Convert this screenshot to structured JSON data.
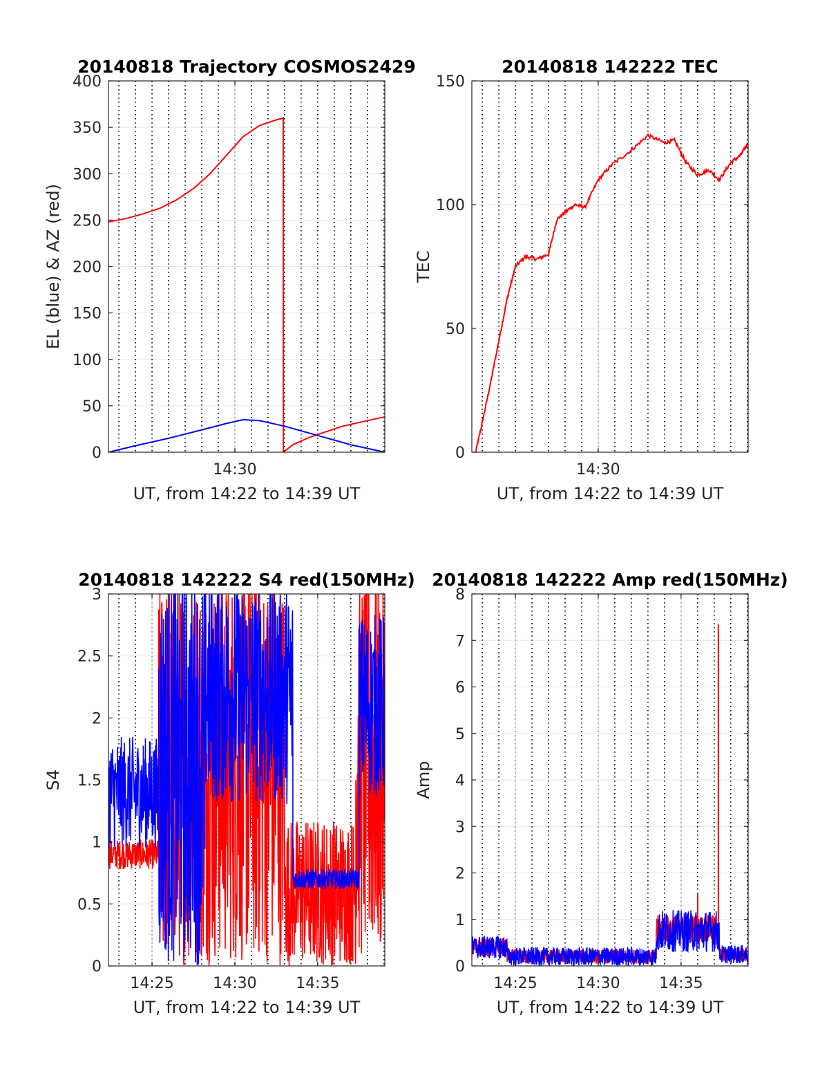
{
  "figure": {
    "background": "#ffffff",
    "colors": {
      "el": "#0000ff",
      "az": "#ff0000",
      "tec": "#ff0000",
      "s4_red": "#ff0000",
      "s4_blue": "#0000ff",
      "amp_red": "#ff0000",
      "amp_blue": "#0000ff"
    }
  },
  "chart_data": [
    {
      "id": "trajectory",
      "type": "line",
      "title": "20140818 Trajectory COSMOS2429",
      "xlabel": "UT, from 14:22 to 14:39 UT",
      "ylabel": "EL (blue) & AZ (red)",
      "xlim": [
        22.37,
        39.05
      ],
      "ylim": [
        0,
        400
      ],
      "yticks": [
        0,
        50,
        100,
        150,
        200,
        250,
        300,
        350,
        400
      ],
      "xticks": [
        {
          "v": 30,
          "label": "14:30"
        }
      ],
      "grid": true,
      "series": [
        {
          "key": "az",
          "color": "#ff0000",
          "x": [
            22.37,
            23.5,
            24.5,
            25.5,
            26.5,
            27.5,
            28.5,
            29.5,
            30.5,
            31.5,
            32.5,
            32.92,
            32.93,
            33.5,
            34.5,
            35.5,
            36.5,
            37.5,
            38.5,
            39.05
          ],
          "y": [
            248,
            252,
            257,
            263,
            272,
            284,
            300,
            320,
            340,
            352,
            358,
            360,
            0,
            8,
            16,
            22,
            28,
            32,
            36,
            38
          ]
        },
        {
          "key": "el",
          "color": "#0000ff",
          "x": [
            22.37,
            24,
            26,
            28,
            29.5,
            30.5,
            31.5,
            33,
            35,
            37,
            39.05
          ],
          "y": [
            0,
            7,
            15,
            24,
            31,
            35,
            34,
            28,
            18,
            8,
            0
          ]
        }
      ]
    },
    {
      "id": "tec",
      "type": "line",
      "title": "20140818 142222 TEC",
      "xlabel": "UT, from 14:22 to 14:39 UT",
      "ylabel": "TEC",
      "xlim": [
        22.37,
        39.05
      ],
      "ylim": [
        0,
        150
      ],
      "yticks": [
        0,
        50,
        100,
        150
      ],
      "xticks": [
        {
          "v": 30,
          "label": "14:30"
        }
      ],
      "grid": true,
      "series": [
        {
          "key": "tec",
          "color": "#ff0000",
          "x": [
            22.6,
            23.0,
            23.5,
            24.0,
            24.5,
            25.0,
            25.6,
            26.3,
            27.0,
            27.5,
            28.0,
            28.6,
            29.2,
            30.0,
            30.8,
            32.0,
            33.0,
            34.0,
            34.6,
            35.3,
            36.0,
            36.7,
            37.3,
            38.0,
            38.6,
            39.05
          ],
          "y": [
            0,
            12,
            28,
            45,
            62,
            75,
            79,
            78,
            80,
            94,
            97,
            100,
            99,
            110,
            116,
            122,
            128,
            125,
            126,
            117,
            112,
            114,
            110,
            117,
            120,
            125
          ]
        }
      ]
    },
    {
      "id": "s4",
      "type": "line",
      "title": "20140818 142222 S4 red(150MHz)",
      "xlabel": "UT, from 14:22 to 14:39 UT",
      "ylabel": "S4",
      "xlim": [
        22.37,
        39.05
      ],
      "ylim": [
        0,
        3
      ],
      "yticks": [
        {
          "v": 0,
          "label": "0"
        },
        {
          "v": 0.5,
          "label": "0.5"
        },
        {
          "v": 1,
          "label": "1"
        },
        {
          "v": 1.5,
          "label": "1.5"
        },
        {
          "v": 2,
          "label": "2"
        },
        {
          "v": 2.5,
          "label": "2.5"
        },
        {
          "v": 3,
          "label": "3"
        }
      ],
      "xticks": [
        {
          "v": 25,
          "label": "14:25"
        },
        {
          "v": 30,
          "label": "14:30"
        },
        {
          "v": 35,
          "label": "14:35"
        }
      ],
      "grid": true,
      "series": [
        {
          "key": "s4_red",
          "color": "#ff0000",
          "segments": [
            {
              "x0": 22.4,
              "x1": 25.4,
              "base": 0.9,
              "amp": 0.12
            },
            {
              "x0": 25.4,
              "x1": 33.0,
              "base": 1.6,
              "amp": 1.6
            },
            {
              "x0": 33.0,
              "x1": 37.3,
              "base": 0.6,
              "amp": 0.6
            },
            {
              "x0": 37.3,
              "x1": 39.05,
              "base": 1.6,
              "amp": 1.6
            }
          ]
        },
        {
          "key": "s4_blue",
          "color": "#0000ff",
          "segments": [
            {
              "x0": 22.4,
              "x1": 25.4,
              "base": 1.4,
              "amp": 0.45
            },
            {
              "x0": 25.4,
              "x1": 28.2,
              "base": 1.6,
              "amp": 1.6
            },
            {
              "x0": 28.2,
              "x1": 33.5,
              "base": 2.2,
              "amp": 0.9
            },
            {
              "x0": 33.5,
              "x1": 37.5,
              "base": 0.7,
              "amp": 0.08
            },
            {
              "x0": 37.5,
              "x1": 39.05,
              "base": 2.1,
              "amp": 0.75
            }
          ]
        }
      ]
    },
    {
      "id": "amp",
      "type": "line",
      "title": "20140818 142222 Amp red(150MHz)",
      "xlabel": "UT, from 14:22 to 14:39 UT",
      "ylabel": "Amp",
      "xlim": [
        22.37,
        39.05
      ],
      "ylim": [
        0,
        8
      ],
      "yticks": [
        0,
        1,
        2,
        3,
        4,
        5,
        6,
        7,
        8
      ],
      "xticks": [
        {
          "v": 25,
          "label": "14:25"
        },
        {
          "v": 30,
          "label": "14:30"
        },
        {
          "v": 35,
          "label": "14:35"
        }
      ],
      "grid": true,
      "spikes": [
        {
          "x": 37.25,
          "y": 7.35,
          "color": "#ff0000"
        },
        {
          "x": 36.0,
          "y": 1.55,
          "color": "#ff0000"
        }
      ],
      "series": [
        {
          "key": "amp_red",
          "color": "#ff0000",
          "segments": [
            {
              "x0": 22.4,
              "x1": 24.5,
              "base": 0.4,
              "amp": 0.2
            },
            {
              "x0": 24.5,
              "x1": 33.5,
              "base": 0.2,
              "amp": 0.15
            },
            {
              "x0": 33.5,
              "x1": 37.3,
              "base": 0.8,
              "amp": 0.3
            },
            {
              "x0": 37.3,
              "x1": 39.05,
              "base": 0.25,
              "amp": 0.15
            }
          ]
        },
        {
          "key": "amp_blue",
          "color": "#0000ff",
          "segments": [
            {
              "x0": 22.4,
              "x1": 24.5,
              "base": 0.4,
              "amp": 0.25
            },
            {
              "x0": 24.5,
              "x1": 33.5,
              "base": 0.2,
              "amp": 0.2
            },
            {
              "x0": 33.5,
              "x1": 37.3,
              "base": 0.75,
              "amp": 0.45
            },
            {
              "x0": 37.3,
              "x1": 39.05,
              "base": 0.25,
              "amp": 0.2
            }
          ]
        }
      ]
    }
  ]
}
